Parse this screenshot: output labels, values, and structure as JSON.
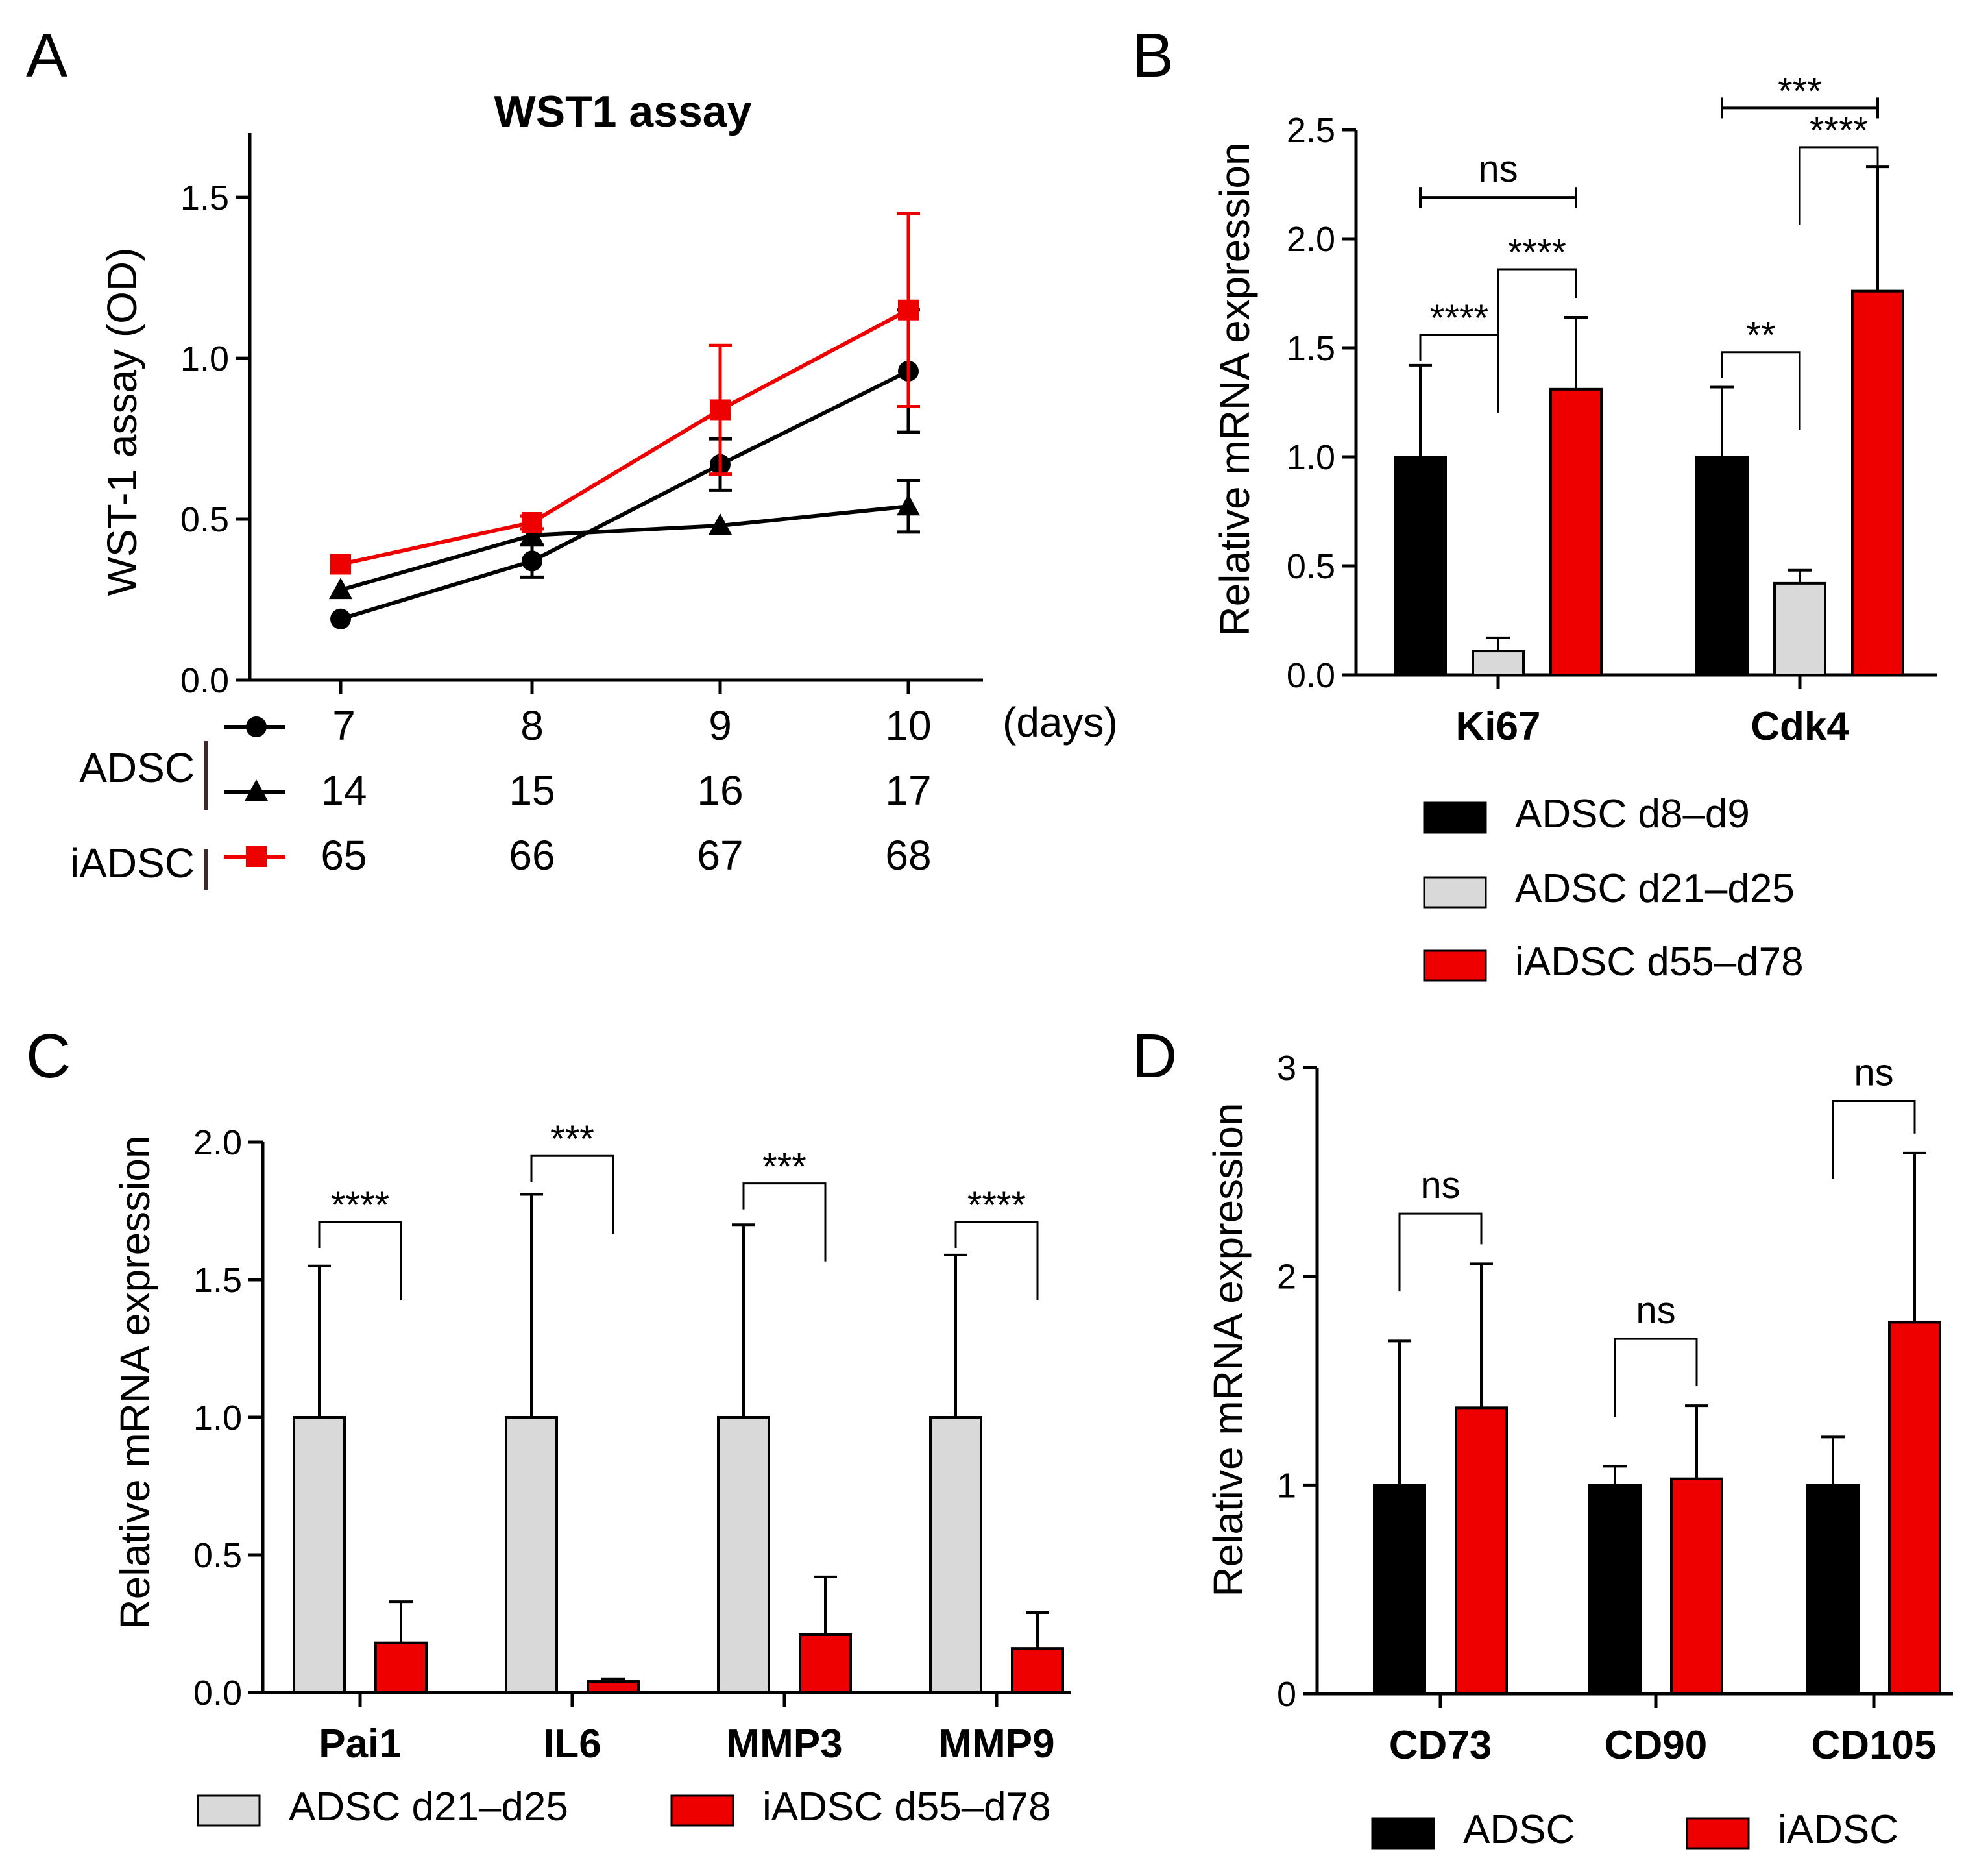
{
  "colors": {
    "black": "#000000",
    "grey": "#d9d9d9",
    "red": "#ee0000",
    "outline": "#000000"
  },
  "chart_data": [
    {
      "id": "A",
      "panel_letter": "A",
      "type": "line",
      "title": "WST1 assay",
      "xlabel": "(days)",
      "ylabel": "WST-1 assay (OD)",
      "ylim": [
        0,
        1.7
      ],
      "yticks": [
        "0.0",
        "0.5",
        "1.0",
        "1.5"
      ],
      "ytick_values": [
        0,
        0.5,
        1.0,
        1.5
      ],
      "x_positions": [
        1,
        2,
        3,
        4
      ],
      "series": [
        {
          "name": "ADSC",
          "marker": "circle",
          "color": "#000000",
          "day_labels": [
            "7",
            "8",
            "9",
            "10"
          ],
          "values": [
            0.19,
            0.37,
            0.67,
            0.96
          ],
          "errors": [
            0.0,
            0.05,
            0.08,
            0.19
          ]
        },
        {
          "name": "ADSC",
          "marker": "triangle",
          "color": "#000000",
          "day_labels": [
            "14",
            "15",
            "16",
            "17"
          ],
          "values": [
            0.28,
            0.45,
            0.48,
            0.54
          ],
          "errors": [
            0.0,
            0.0,
            0.0,
            0.08
          ]
        },
        {
          "name": "iADSC",
          "marker": "square",
          "color": "#ee0000",
          "day_labels": [
            "65",
            "66",
            "67",
            "68"
          ],
          "values": [
            0.36,
            0.49,
            0.84,
            1.15
          ],
          "errors": [
            0.0,
            0.02,
            0.2,
            0.3
          ]
        }
      ],
      "group_labels": [
        "ADSC",
        "iADSC"
      ]
    },
    {
      "id": "B",
      "panel_letter": "B",
      "type": "bar",
      "ylabel": "Relative mRNA expression",
      "ylim": [
        0,
        2.5
      ],
      "yticks": [
        "0.0",
        "0.5",
        "1.0",
        "1.5",
        "2.0",
        "2.5"
      ],
      "ytick_values": [
        0,
        0.5,
        1.0,
        1.5,
        2.0,
        2.5
      ],
      "categories": [
        "Ki67",
        "Cdk4"
      ],
      "series": [
        {
          "name": "ADSC d8–d9",
          "color": "#000000",
          "values": [
            1.0,
            1.0
          ],
          "errors": [
            0.42,
            0.32
          ]
        },
        {
          "name": "ADSC d21–d25",
          "color": "#d9d9d9",
          "values": [
            0.11,
            0.42
          ],
          "errors": [
            0.06,
            0.06
          ]
        },
        {
          "name": "iADSC d55–d78",
          "color": "#ee0000",
          "values": [
            1.31,
            1.76
          ],
          "errors": [
            0.33,
            0.57
          ]
        }
      ],
      "annotations": [
        {
          "label": "ns",
          "category": 0,
          "from": 0,
          "to": 2,
          "y": 2.19,
          "style": "line"
        },
        {
          "label": "****",
          "category": 0,
          "from": 0,
          "to": 1,
          "y": 1.56,
          "style": "bracket"
        },
        {
          "label": "****",
          "category": 0,
          "from": 1,
          "to": 2,
          "y": 1.86,
          "style": "bracket"
        },
        {
          "label": "***",
          "category": 1,
          "from": 0,
          "to": 2,
          "y": 2.6,
          "style": "line"
        },
        {
          "label": "**",
          "category": 1,
          "from": 0,
          "to": 1,
          "y": 1.48,
          "style": "bracket"
        },
        {
          "label": "****",
          "category": 1,
          "from": 1,
          "to": 2,
          "y": 2.42,
          "style": "bracket"
        }
      ],
      "legend": [
        "ADSC d8–d9",
        "ADSC d21–d25",
        "iADSC d55–d78"
      ]
    },
    {
      "id": "C",
      "panel_letter": "C",
      "type": "bar",
      "ylabel": "Relative mRNA expression",
      "ylim": [
        0,
        2.0
      ],
      "yticks": [
        "0.0",
        "0.5",
        "1.0",
        "1.5",
        "2.0"
      ],
      "ytick_values": [
        0,
        0.5,
        1.0,
        1.5,
        2.0
      ],
      "categories": [
        "Pai1",
        "IL6",
        "MMP3",
        "MMP9"
      ],
      "series": [
        {
          "name": "ADSC d21–d25",
          "color": "#d9d9d9",
          "values": [
            1.0,
            1.0,
            1.0,
            1.0
          ],
          "errors": [
            0.55,
            0.81,
            0.7,
            0.59
          ]
        },
        {
          "name": "iADSC d55–d78",
          "color": "#ee0000",
          "values": [
            0.18,
            0.04,
            0.21,
            0.16
          ],
          "errors": [
            0.15,
            0.01,
            0.21,
            0.13
          ]
        }
      ],
      "annotations": [
        {
          "label": "****",
          "category": 0,
          "from": 0,
          "to": 1,
          "y": 1.71,
          "style": "bracket"
        },
        {
          "label": "***",
          "category": 1,
          "from": 0,
          "to": 1,
          "y": 1.95,
          "style": "bracket"
        },
        {
          "label": "***",
          "category": 2,
          "from": 0,
          "to": 1,
          "y": 1.85,
          "style": "bracket"
        },
        {
          "label": "****",
          "category": 3,
          "from": 0,
          "to": 1,
          "y": 1.71,
          "style": "bracket"
        }
      ],
      "legend": [
        "ADSC d21–d25",
        "iADSC d55–d78"
      ]
    },
    {
      "id": "D",
      "panel_letter": "D",
      "type": "bar",
      "ylabel": "Relative mRNA expression",
      "ylim": [
        0,
        3
      ],
      "yticks": [
        "0",
        "1",
        "2",
        "3"
      ],
      "ytick_values": [
        0,
        1,
        2,
        3
      ],
      "categories": [
        "CD73",
        "CD90",
        "CD105"
      ],
      "series": [
        {
          "name": "ADSC",
          "color": "#000000",
          "values": [
            1.0,
            1.0,
            1.0
          ],
          "errors": [
            0.69,
            0.09,
            0.23
          ]
        },
        {
          "name": "iADSC",
          "color": "#ee0000",
          "values": [
            1.37,
            1.03,
            1.78
          ],
          "errors": [
            0.69,
            0.35,
            0.81
          ]
        }
      ],
      "annotations": [
        {
          "label": "ns",
          "category": 0,
          "from": 0,
          "to": 1,
          "y": 2.3,
          "style": "bracket"
        },
        {
          "label": "ns",
          "category": 1,
          "from": 0,
          "to": 1,
          "y": 1.7,
          "style": "bracket"
        },
        {
          "label": "ns",
          "category": 2,
          "from": 0,
          "to": 1,
          "y": 2.84,
          "style": "bracket"
        }
      ],
      "legend": [
        "ADSC",
        "iADSC"
      ]
    }
  ]
}
